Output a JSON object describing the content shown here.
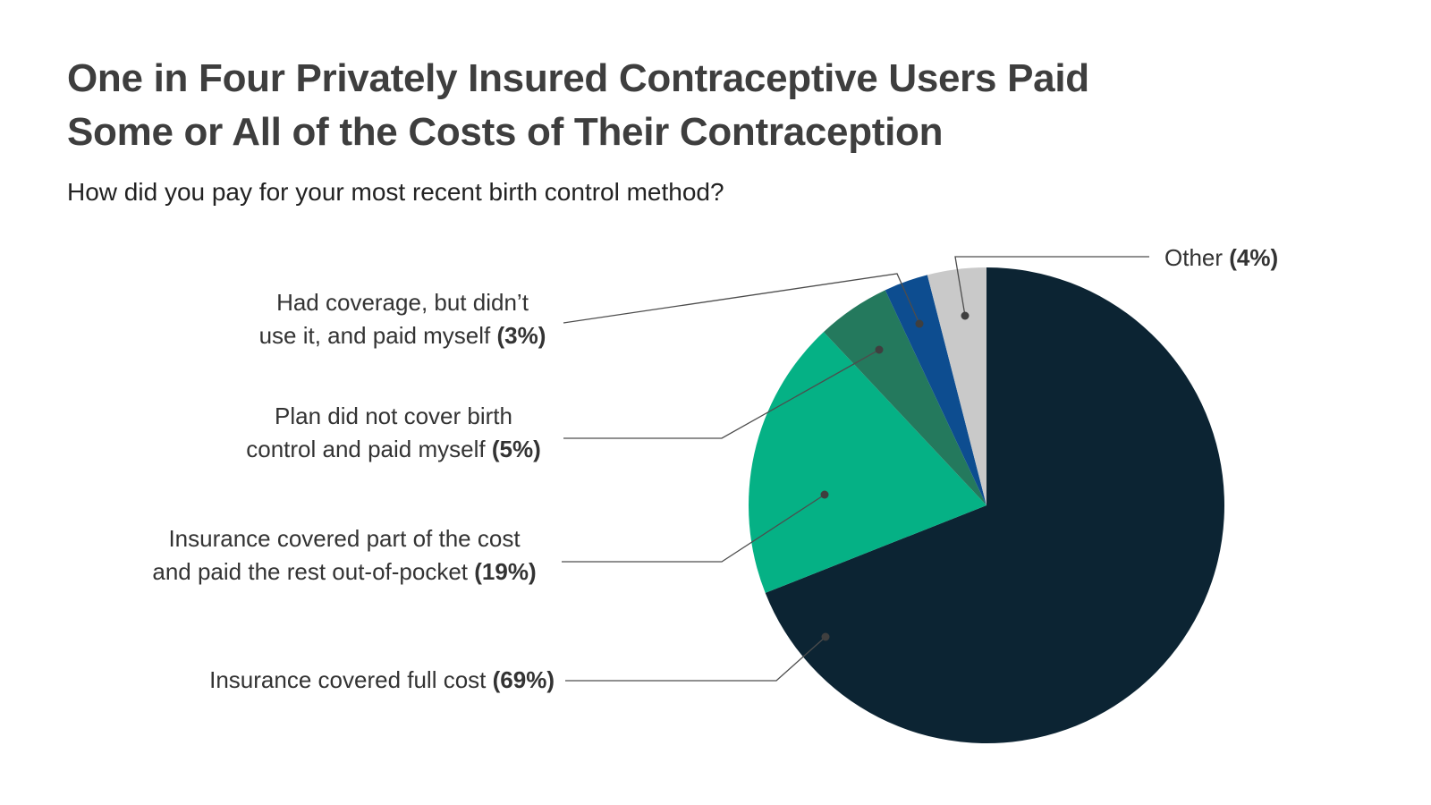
{
  "page": {
    "title_line1": "One in Four Privately Insured Contraceptive Users Paid",
    "title_line2": "Some or All of the Costs of Their Contraception",
    "question": "How did you pay for your most recent birth control method?"
  },
  "chart_data": {
    "type": "pie",
    "title": "One in Four Privately Insured Contraceptive Users Paid Some or All of the Costs of Their Contraception",
    "subtitle": "How did you pay for your most recent birth control method?",
    "start_angle_deg": 0,
    "direction": "clockwise",
    "legend_position": "callout-labels",
    "slices": [
      {
        "id": "full-cost",
        "label_lines": [
          "Insurance covered full cost"
        ],
        "pct": 69,
        "pct_text": "(69%)",
        "color": "#0c2433"
      },
      {
        "id": "part-cost",
        "label_lines": [
          "Insurance covered part of the cost",
          "and paid the rest out-of-pocket"
        ],
        "pct": 19,
        "pct_text": "(19%)",
        "color": "#05b185"
      },
      {
        "id": "plan-no-cover",
        "label_lines": [
          "Plan  did not cover birth",
          "control and paid myself"
        ],
        "pct": 5,
        "pct_text": "(5%)",
        "color": "#24795d"
      },
      {
        "id": "had-coverage",
        "label_lines": [
          "Had coverage, but didn’t",
          "use it, and paid myself"
        ],
        "pct": 3,
        "pct_text": "(3%)",
        "color": "#0d4d90"
      },
      {
        "id": "other",
        "label_lines": [
          "Other"
        ],
        "pct": 4,
        "pct_text": "(4%)",
        "color": "#c9c9c9"
      }
    ],
    "leader_line_color": "#4d4d4d",
    "leader_dot_color": "#3f3f3f"
  }
}
